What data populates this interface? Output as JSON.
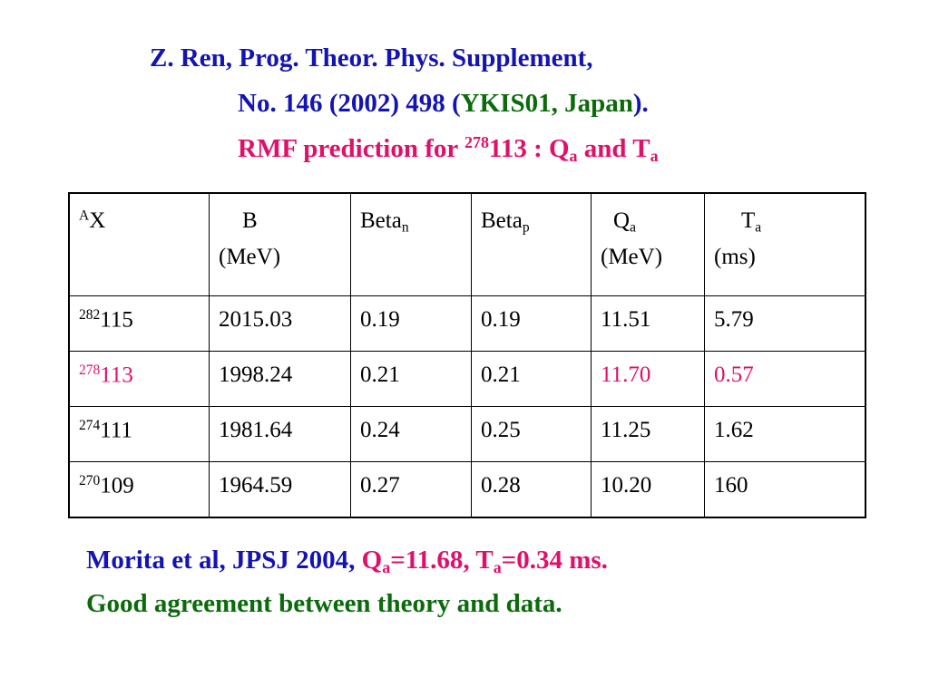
{
  "header": {
    "line1": "Z. Ren,  Prog. Theor. Phys. Supplement,",
    "line2_pre": "No. 146 (2002) 498 (",
    "line2_conf": "YKIS01, Japan",
    "line2_post": ").",
    "line3_pre": "RMF prediction for ",
    "line3_mass": "278",
    "line3_elem": "113 :  Q",
    "line3_q_sub": "a",
    "line3_and": " and T",
    "line3_t_sub": "a"
  },
  "table": {
    "headers": {
      "col0_sup": "A",
      "col0": "X",
      "col1_line1": "B",
      "col1_line2": "(MeV)",
      "col2": "Beta",
      "col2_sub": "n",
      "col3": "Beta",
      "col3_sub": "p",
      "col4_line1": "Q",
      "col4_sub": "a",
      "col4_line2": "(MeV)",
      "col5_line1": "T",
      "col5_sub": "a",
      "col5_line2": "(ms)"
    },
    "rows": [
      {
        "mass": "282",
        "z": "115",
        "B": "2015.03",
        "beta_n": "0.19",
        "beta_p": "0.19",
        "Q": "11.51",
        "T": "5.79"
      },
      {
        "mass": "278",
        "z": "113",
        "B": "1998.24",
        "beta_n": "0.21",
        "beta_p": "0.21",
        "Q": "11.70",
        "T": "0.57"
      },
      {
        "mass": "274",
        "z": "111",
        "B": "1981.64",
        "beta_n": "0.24",
        "beta_p": "0.25",
        "Q": "11.25",
        "T": "1.62"
      },
      {
        "mass": "270",
        "z": "109",
        "B": "1964.59",
        "beta_n": "0.27",
        "beta_p": "0.28",
        "Q": "10.20",
        "T": "160"
      }
    ]
  },
  "footer": {
    "line1_blue": "Morita et al, JPSJ 2004, ",
    "line1_q": "Q",
    "line1_q_sub": "a",
    "line1_q_val": "=11.68, T",
    "line1_t_sub": "a",
    "line1_t_val": "=0.34 ms.",
    "line2": "Good agreement between theory and data."
  },
  "colors": {
    "blue": "#1414b4",
    "green": "#0b6b0b",
    "highlight": "#e0106a"
  }
}
